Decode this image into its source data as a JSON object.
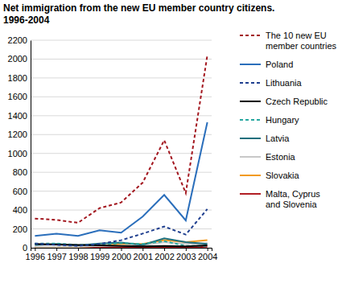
{
  "chart_data": {
    "type": "line",
    "title": "Net immigration from the new EU member country citizens.",
    "subtitle": "1996-2004",
    "categories": [
      "1996",
      "1997",
      "1998",
      "1999",
      "2000",
      "2001",
      "2002",
      "2003",
      "2004"
    ],
    "ylim": [
      0,
      2200
    ],
    "yticks": [
      0,
      200,
      400,
      600,
      800,
      1000,
      1200,
      1400,
      1600,
      1800,
      2000,
      2200
    ],
    "grid": true,
    "legend": "right",
    "series": [
      {
        "name": "The 10 new EU member countries",
        "color": "#a3171f",
        "line_style": "dashed",
        "values": [
          310,
          295,
          265,
          420,
          480,
          690,
          1140,
          580,
          2040
        ]
      },
      {
        "name": "Poland",
        "color": "#2a6ebb",
        "line_style": "solid",
        "values": [
          125,
          150,
          125,
          185,
          160,
          330,
          560,
          290,
          1330
        ]
      },
      {
        "name": "Lithuania",
        "color": "#1f3f8f",
        "line_style": "dashed",
        "values": [
          45,
          30,
          20,
          40,
          80,
          150,
          225,
          140,
          410
        ]
      },
      {
        "name": "Czech Republic",
        "color": "#000000",
        "line_style": "solid",
        "values": [
          40,
          35,
          30,
          25,
          20,
          15,
          20,
          15,
          25
        ]
      },
      {
        "name": "Hungary",
        "color": "#27a8a0",
        "line_style": "dashed",
        "values": [
          45,
          45,
          30,
          30,
          50,
          40,
          70,
          20,
          20
        ]
      },
      {
        "name": "Latvia",
        "color": "#1e6f7d",
        "line_style": "solid",
        "values": [
          30,
          40,
          25,
          45,
          55,
          30,
          100,
          60,
          40
        ]
      },
      {
        "name": "Estonia",
        "color": "#c8c8c8",
        "line_style": "solid",
        "values": [
          10,
          10,
          10,
          20,
          20,
          25,
          60,
          40,
          50
        ]
      },
      {
        "name": "Slovakia",
        "color": "#f29a1e",
        "line_style": "solid",
        "values": [
          0,
          5,
          10,
          20,
          40,
          40,
          80,
          60,
          80
        ]
      },
      {
        "name": "Malta, Cyprus and Slovenia",
        "color": "#b11e24",
        "line_style": "solid",
        "values": [
          5,
          5,
          5,
          5,
          10,
          5,
          5,
          5,
          10
        ]
      }
    ]
  }
}
